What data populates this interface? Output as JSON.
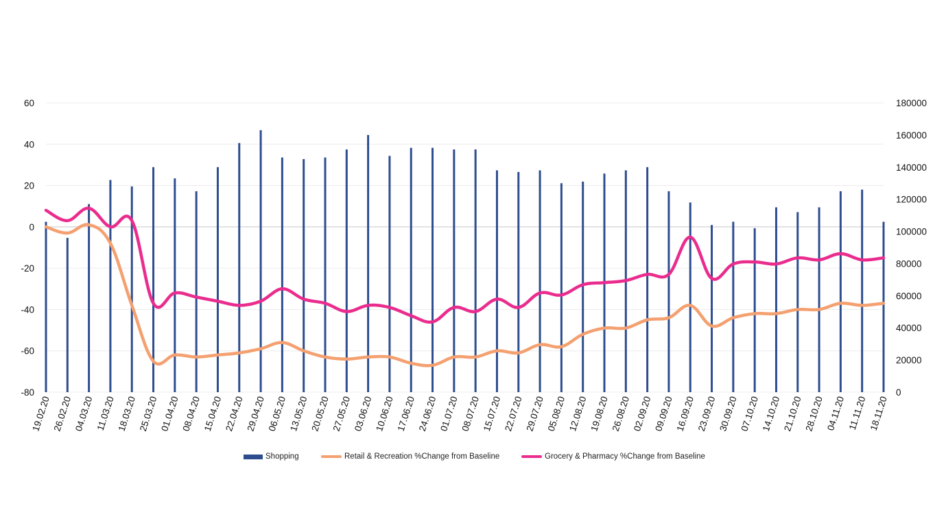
{
  "chart_data": {
    "type": "bar+line",
    "title": "",
    "categories": [
      "19.02.20",
      "26.02.20",
      "04.03.20",
      "11.03.20",
      "18.03.20",
      "25.03.20",
      "01.04.20",
      "08.04.20",
      "15.04.20",
      "22.04.20",
      "29.04.20",
      "06.05.20",
      "13.05.20",
      "20.05.20",
      "27.05.20",
      "03.06.20",
      "10.06.20",
      "17.06.20",
      "24.06.20",
      "01.07.20",
      "08.07.20",
      "15.07.20",
      "22.07.20",
      "29.07.20",
      "05.08.20",
      "12.08.20",
      "19.08.20",
      "26.08.20",
      "02.09.20",
      "09.09.20",
      "16.09.20",
      "23.09.20",
      "30.09.20",
      "07.10.20",
      "14.10.20",
      "21.10.20",
      "28.10.20",
      "04.11.20",
      "11.11.20",
      "18.11.20"
    ],
    "y_left": {
      "min": -80,
      "max": 60,
      "step": 20,
      "ticks": [
        "-80",
        "-60",
        "-40",
        "-20",
        "0",
        "20",
        "40",
        "60"
      ]
    },
    "y_right": {
      "min": 0,
      "max": 180000,
      "step": 20000,
      "ticks": [
        "0",
        "20000",
        "40000",
        "60000",
        "80000",
        "100000",
        "120000",
        "140000",
        "160000",
        "180000"
      ]
    },
    "grid": true,
    "series": [
      {
        "name": "Shopping",
        "kind": "bar",
        "axis": "right",
        "color": "#2e4d8f",
        "values": [
          106000,
          96000,
          117000,
          132000,
          128000,
          140000,
          133000,
          125000,
          140000,
          155000,
          163000,
          146000,
          145000,
          146000,
          151000,
          160000,
          147000,
          152000,
          152000,
          151000,
          151000,
          138000,
          137000,
          138000,
          130000,
          131000,
          136000,
          138000,
          140000,
          125000,
          118000,
          104000,
          106000,
          102000,
          115000,
          112000,
          115000,
          125000,
          126000,
          106000
        ]
      },
      {
        "name": "Retail & Recreation %Change from Baseline",
        "kind": "line",
        "axis": "left",
        "color": "#f4a070",
        "values": [
          0,
          -3,
          1,
          -8,
          -38,
          -65,
          -62,
          -63,
          -62,
          -61,
          -59,
          -56,
          -60,
          -63,
          -64,
          -63,
          -63,
          -66,
          -67,
          -63,
          -63,
          -60,
          -61,
          -57,
          -58,
          -52,
          -49,
          -49,
          -45,
          -44,
          -38,
          -48,
          -44,
          -42,
          -42,
          -40,
          -40,
          -37,
          -38,
          -37
        ]
      },
      {
        "name": "Grocery & Pharmacy %Change from Baseline",
        "kind": "line",
        "axis": "left",
        "color": "#ea2c8e",
        "values": [
          8,
          3,
          9,
          0,
          3,
          -37,
          -32,
          -34,
          -36,
          -38,
          -36,
          -30,
          -35,
          -37,
          -41,
          -38,
          -39,
          -43,
          -46,
          -39,
          -41,
          -35,
          -39,
          -32,
          -33,
          -28,
          -27,
          -26,
          -23,
          -23,
          -5,
          -25,
          -18,
          -17,
          -18,
          -15,
          -16,
          -13,
          -16,
          -15
        ]
      }
    ],
    "legend": {
      "position": "bottom",
      "entries": [
        "Shopping",
        "Retail & Recreation %Change from Baseline",
        "Grocery & Pharmacy %Change from Baseline"
      ]
    }
  }
}
